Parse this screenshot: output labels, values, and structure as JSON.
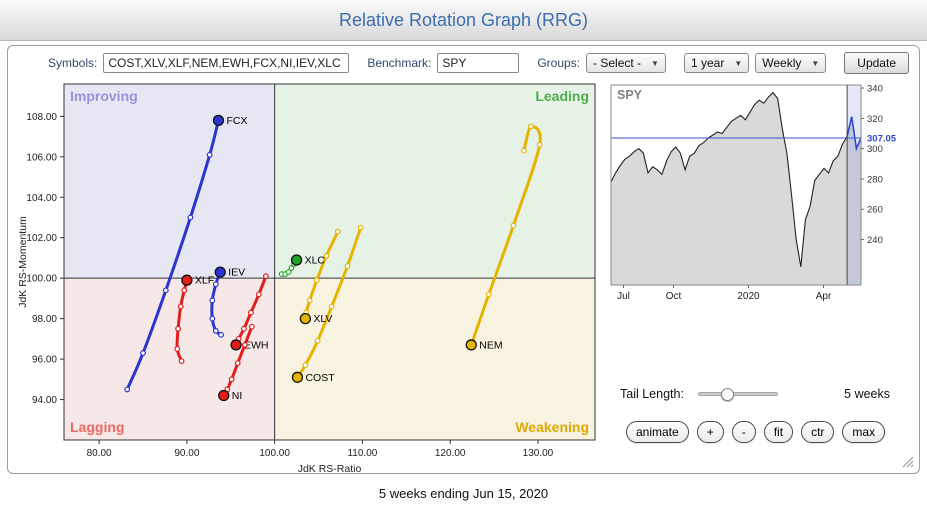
{
  "header": {
    "title": "Relative Rotation Graph (RRG)"
  },
  "toolbar": {
    "symbols_label": "Symbols:",
    "symbols_value": "COST,XLV,XLF,NEM,EWH,FCX,NI,IEV,XLC",
    "benchmark_label": "Benchmark:",
    "benchmark_value": "SPY",
    "groups_label": "Groups:",
    "groups_value": "- Select -",
    "period_value": "1 year",
    "frequency_value": "Weekly",
    "update_label": "Update"
  },
  "controls": {
    "tail_length_label": "Tail Length:",
    "tail_length_weeks": 5,
    "tail_length_value": "5 weeks",
    "buttons": [
      "animate",
      "+",
      "-",
      "fit",
      "ctr",
      "max"
    ]
  },
  "footer": {
    "caption": "5 weeks ending Jun 15, 2020"
  },
  "colors": {
    "title_blue": "#3c6eae",
    "improving_label": "#9593d9",
    "leading_label": "#4cae4c",
    "lagging_label": "#f06565",
    "weakening_label": "#dfa800",
    "tail_blue": "#2b35cf",
    "tail_red": "#e11d1d",
    "tail_green": "#1fa32a",
    "tail_gold": "#e5b400",
    "spy_blue": "#2b49d6"
  },
  "chart_data": [
    {
      "id": "rrg",
      "type": "scatter",
      "xlabel": "JdK RS-Ratio",
      "ylabel": "JdK RS-Momentum",
      "xlim": [
        76,
        136.5
      ],
      "ylim": [
        92,
        109.6
      ],
      "x_ticks": [
        80,
        90,
        100,
        110,
        120,
        130
      ],
      "y_ticks": [
        94,
        96,
        98,
        100,
        102,
        104,
        106,
        108
      ],
      "center": [
        100,
        100
      ],
      "quadrants": [
        {
          "name": "Improving",
          "position": "top-left",
          "fill": "#e7e7f4",
          "label_color": "#9593d9"
        },
        {
          "name": "Leading",
          "position": "top-right",
          "fill": "#e7f2e7",
          "label_color": "#4cae4c"
        },
        {
          "name": "Lagging",
          "position": "bottom-left",
          "fill": "#f7e8e8",
          "label_color": "#f06565"
        },
        {
          "name": "Weakening",
          "position": "bottom-right",
          "fill": "#f8f3e0",
          "label_color": "#dfa800"
        }
      ],
      "series": [
        {
          "name": "COST",
          "color": "#e5b400",
          "points": [
            [
              109.8,
              102.5
            ],
            [
              108.3,
              100.6
            ],
            [
              106.5,
              98.6
            ],
            [
              104.9,
              96.9
            ],
            [
              103.5,
              95.7
            ],
            [
              102.6,
              95.1
            ]
          ]
        },
        {
          "name": "XLV",
          "color": "#e5b400",
          "points": [
            [
              107.2,
              102.3
            ],
            [
              105.9,
              101.1
            ],
            [
              104.8,
              99.9
            ],
            [
              104.0,
              98.9
            ],
            [
              103.6,
              98.3
            ],
            [
              103.5,
              98.0
            ]
          ]
        },
        {
          "name": "XLF",
          "color": "#e11d1d",
          "points": [
            [
              89.4,
              95.9
            ],
            [
              88.9,
              96.5
            ],
            [
              89.0,
              97.5
            ],
            [
              89.3,
              98.6
            ],
            [
              89.7,
              99.4
            ],
            [
              90.0,
              99.9
            ]
          ]
        },
        {
          "name": "NEM",
          "color": "#e5b400",
          "points": [
            [
              128.4,
              106.3
            ],
            [
              129.2,
              107.5
            ],
            [
              130.2,
              106.6
            ],
            [
              127.2,
              102.6
            ],
            [
              124.4,
              99.2
            ],
            [
              122.4,
              96.7
            ]
          ]
        },
        {
          "name": "EWH",
          "color": "#e11d1d",
          "points": [
            [
              99.0,
              100.1
            ],
            [
              98.2,
              99.2
            ],
            [
              97.3,
              98.3
            ],
            [
              96.5,
              97.5
            ],
            [
              95.9,
              97.0
            ],
            [
              95.6,
              96.7
            ]
          ]
        },
        {
          "name": "FCX",
          "color": "#2b35cf",
          "points": [
            [
              83.2,
              94.5
            ],
            [
              85.0,
              96.3
            ],
            [
              87.6,
              99.4
            ],
            [
              90.4,
              103.0
            ],
            [
              92.6,
              106.1
            ],
            [
              93.6,
              107.8
            ]
          ]
        },
        {
          "name": "NI",
          "color": "#e11d1d",
          "points": [
            [
              97.4,
              97.6
            ],
            [
              96.6,
              96.7
            ],
            [
              95.8,
              95.8
            ],
            [
              95.1,
              95.0
            ],
            [
              94.6,
              94.5
            ],
            [
              94.2,
              94.2
            ]
          ]
        },
        {
          "name": "IEV",
          "color": "#2b35cf",
          "points": [
            [
              93.9,
              97.2
            ],
            [
              93.3,
              97.4
            ],
            [
              92.9,
              98.0
            ],
            [
              92.9,
              98.9
            ],
            [
              93.3,
              99.7
            ],
            [
              93.8,
              100.3
            ]
          ]
        },
        {
          "name": "XLC",
          "color": "#1fa32a",
          "points": [
            [
              100.8,
              100.2
            ],
            [
              101.2,
              100.2
            ],
            [
              101.6,
              100.3
            ],
            [
              101.9,
              100.5
            ],
            [
              102.2,
              100.7
            ],
            [
              102.5,
              100.9
            ]
          ]
        }
      ]
    },
    {
      "id": "spy",
      "type": "area",
      "title": "SPY",
      "ylim": [
        210,
        342
      ],
      "y_ticks": [
        240,
        260,
        280,
        300,
        320,
        340
      ],
      "x_tick_labels": [
        "Jul",
        "Oct",
        "2020",
        "Apr"
      ],
      "x_tick_positions": [
        0.05,
        0.25,
        0.55,
        0.85
      ],
      "current_price": 307.05,
      "current_price_label": "307.05",
      "marker_index": 51,
      "values": [
        278,
        284,
        289,
        293,
        295,
        298,
        300,
        297,
        284,
        288,
        286,
        283,
        292,
        298,
        301,
        297,
        286,
        295,
        297,
        302,
        304,
        307,
        309,
        311,
        310,
        314,
        318,
        320,
        322,
        319,
        324,
        329,
        332,
        330,
        334,
        337,
        333,
        313,
        297,
        269,
        240,
        222,
        253,
        262,
        279,
        283,
        287,
        284,
        292,
        295,
        303,
        308,
        321,
        300,
        307
      ]
    }
  ]
}
